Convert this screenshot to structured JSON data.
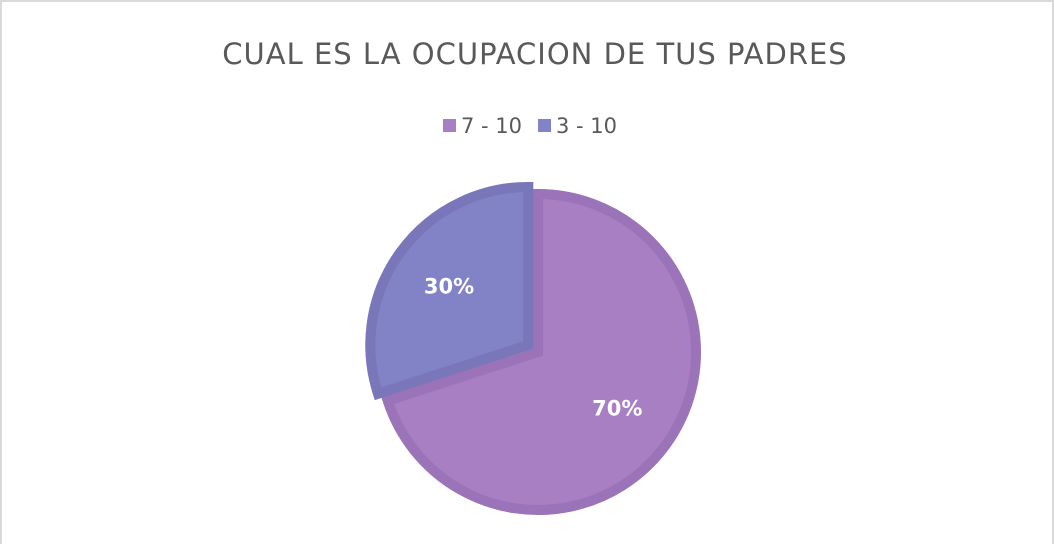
{
  "chart_data": {
    "type": "pie",
    "title": "CUAL ES LA OCUPACION DE TUS PADRES",
    "categories": [
      "7 - 10",
      "3 - 10"
    ],
    "values": [
      70,
      30
    ],
    "value_labels": [
      "70%",
      "30%"
    ],
    "colors": [
      "#a97fc4",
      "#8282c6"
    ],
    "legend": "top"
  }
}
